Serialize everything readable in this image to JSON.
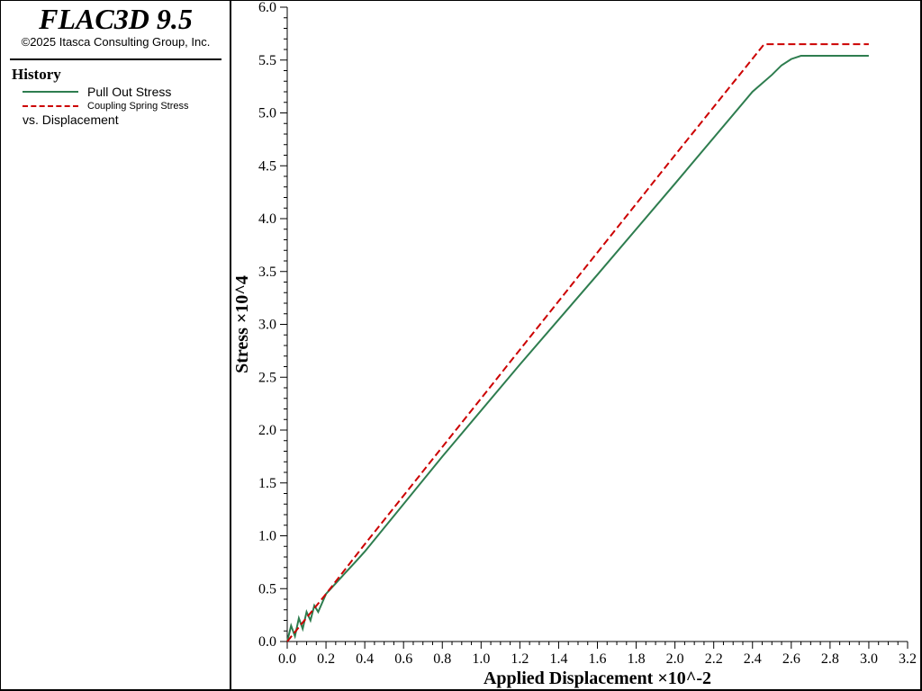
{
  "header": {
    "app_title": "FLAC3D 9.5",
    "copyright": "©2025 Itasca Consulting Group, Inc."
  },
  "legend": {
    "title": "History",
    "items": [
      {
        "label": "Pull Out Stress",
        "color": "#2e7d4f",
        "style": "solid"
      },
      {
        "label": "Coupling Spring Stress",
        "color": "#cc0000",
        "style": "dashed"
      }
    ],
    "vs_label": "vs. Displacement"
  },
  "chart_data": {
    "type": "line",
    "xlabel": "Applied Displacement ×10^-2",
    "ylabel": "Stress ×10^4",
    "xlim": [
      0,
      3.2
    ],
    "ylim": [
      0,
      6.0
    ],
    "x_ticks": [
      "0.0",
      "0.2",
      "0.4",
      "0.6",
      "0.8",
      "1.0",
      "1.2",
      "1.4",
      "1.6",
      "1.8",
      "2.0",
      "2.2",
      "2.4",
      "2.6",
      "2.8",
      "3.0",
      "3.2"
    ],
    "y_ticks": [
      "0.0",
      "0.5",
      "1.0",
      "1.5",
      "2.0",
      "2.5",
      "3.0",
      "3.5",
      "4.0",
      "4.5",
      "5.0",
      "5.5",
      "6.0"
    ],
    "grid": false,
    "series": [
      {
        "name": "Pull Out Stress",
        "color": "#2e7d4f",
        "style": "solid",
        "x": [
          0.0,
          0.02,
          0.04,
          0.06,
          0.08,
          0.1,
          0.12,
          0.14,
          0.16,
          0.2,
          0.25,
          0.3,
          0.35,
          0.4,
          0.8,
          1.2,
          1.6,
          2.0,
          2.4,
          2.5,
          2.55,
          2.6,
          2.65,
          2.7,
          2.8,
          3.0
        ],
        "y": [
          0.0,
          0.15,
          0.05,
          0.22,
          0.12,
          0.28,
          0.2,
          0.34,
          0.28,
          0.45,
          0.55,
          0.65,
          0.75,
          0.85,
          1.75,
          2.62,
          3.47,
          4.33,
          5.2,
          5.36,
          5.45,
          5.51,
          5.54,
          5.54,
          5.54,
          5.54
        ]
      },
      {
        "name": "Coupling Spring Stress",
        "color": "#cc0000",
        "style": "dashed",
        "x": [
          0.0,
          0.2,
          0.4,
          0.8,
          1.2,
          1.6,
          2.0,
          2.46,
          2.6,
          2.8,
          3.0
        ],
        "y": [
          0.0,
          0.45,
          0.92,
          1.84,
          2.76,
          3.68,
          4.6,
          5.65,
          5.65,
          5.65,
          5.65
        ]
      }
    ]
  }
}
